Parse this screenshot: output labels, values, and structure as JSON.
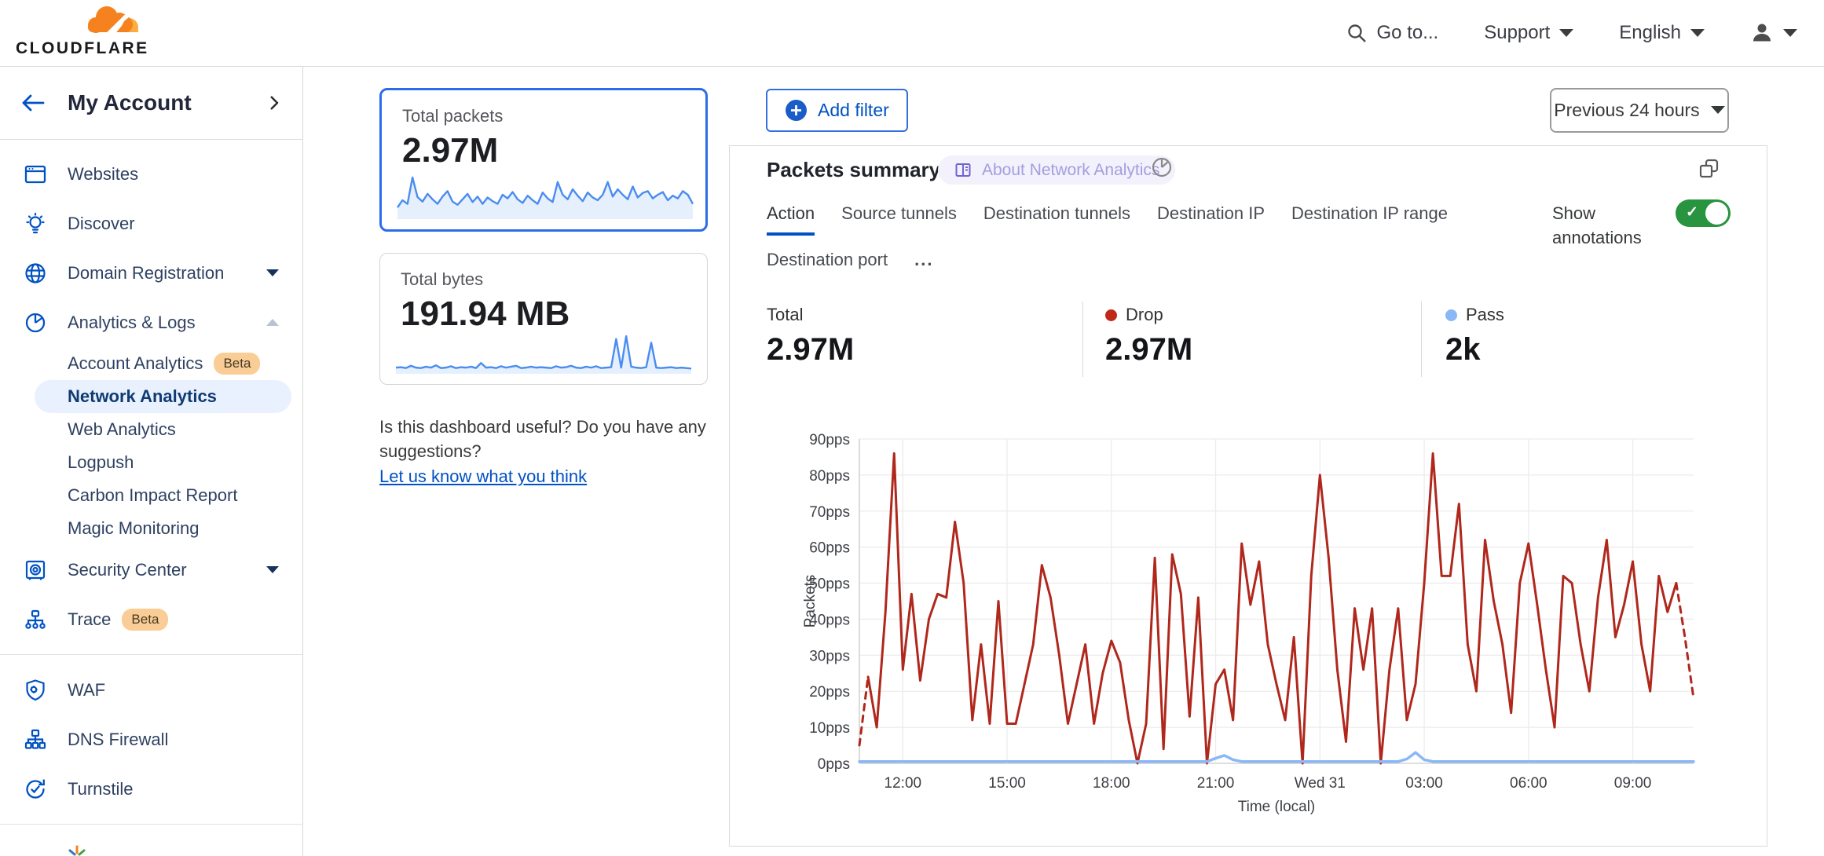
{
  "header": {
    "brand": "CLOUDFLARE",
    "go_to": "Go to...",
    "support": "Support",
    "language": "English"
  },
  "sidebar": {
    "account_title": "My Account",
    "beta_label": "Beta",
    "items": [
      {
        "label": "Websites",
        "icon": "browser"
      },
      {
        "label": "Discover",
        "icon": "bulb"
      },
      {
        "label": "Domain Registration",
        "icon": "globe",
        "caret": "down"
      },
      {
        "label": "Analytics & Logs",
        "icon": "pie",
        "caret": "up"
      },
      {
        "label": "Account Analytics",
        "sub": true,
        "beta": true
      },
      {
        "label": "Network Analytics",
        "sub": true,
        "active": true
      },
      {
        "label": "Web Analytics",
        "sub": true
      },
      {
        "label": "Logpush",
        "sub": true
      },
      {
        "label": "Carbon Impact Report",
        "sub": true
      },
      {
        "label": "Magic Monitoring",
        "sub": true
      },
      {
        "label": "Security Center",
        "icon": "vault",
        "caret": "down"
      },
      {
        "label": "Trace",
        "icon": "trace",
        "beta": true
      },
      {
        "divider": true
      },
      {
        "label": "WAF",
        "icon": "shield"
      },
      {
        "label": "DNS Firewall",
        "icon": "tree"
      },
      {
        "label": "Turnstile",
        "icon": "turnstile"
      },
      {
        "divider": true
      }
    ]
  },
  "cards": {
    "packets": {
      "title": "Total packets",
      "value": "2.97M"
    },
    "bytes": {
      "title": "Total bytes",
      "value": "191.94 MB"
    }
  },
  "feedback": {
    "question": "Is this dashboard useful? Do you have any suggestions?",
    "link": "Let us know what you think"
  },
  "toolbar": {
    "add_filter": "Add filter",
    "time_range": "Previous 24 hours"
  },
  "panel": {
    "title": "Packets summary",
    "badge": "About Network Analytics",
    "tabs": [
      "Action",
      "Source tunnels",
      "Destination tunnels",
      "Destination IP",
      "Destination IP range",
      "Destination port"
    ],
    "active_tab": "Action",
    "more_tabs": "...",
    "show_annotations": "Show annotations",
    "annotations_on": true,
    "stats": [
      {
        "label": "Total",
        "value": "2.97M",
        "dot": null
      },
      {
        "label": "Drop",
        "value": "2.97M",
        "dot": "#c0281a"
      },
      {
        "label": "Pass",
        "value": "2k",
        "dot": "#8ab7f7"
      }
    ]
  },
  "chart_data": {
    "type": "line",
    "title": "Packets summary",
    "xlabel": "Time (local)",
    "ylabel": "Packets",
    "ylim": [
      0,
      90
    ],
    "ytick_step": 10,
    "ytick_suffix": "pps",
    "grid": true,
    "x_labels": [
      {
        "i": 5,
        "t": "12:00"
      },
      {
        "i": 17,
        "t": "15:00"
      },
      {
        "i": 29,
        "t": "18:00"
      },
      {
        "i": 41,
        "t": "21:00"
      },
      {
        "i": 53,
        "t": "Wed 31"
      },
      {
        "i": 65,
        "t": "03:00"
      },
      {
        "i": 77,
        "t": "06:00"
      },
      {
        "i": 89,
        "t": "09:00"
      }
    ],
    "series": [
      {
        "name": "Drop",
        "color": "#b0271c",
        "dashed_head": 1,
        "dashed_tail": 2,
        "values": [
          5,
          24,
          10,
          42,
          86,
          26,
          47,
          23,
          40,
          47,
          46,
          67,
          50,
          12,
          33,
          11,
          45,
          11,
          11,
          22,
          33,
          55,
          46,
          30,
          11,
          22,
          33,
          11,
          25,
          34,
          28,
          12,
          0,
          11,
          57,
          4,
          58,
          47,
          13,
          46,
          0,
          22,
          26,
          12,
          61,
          44,
          56,
          33,
          22,
          12,
          35,
          0,
          52,
          80,
          57,
          26,
          6,
          43,
          26,
          43,
          0,
          26,
          43,
          12,
          22,
          50,
          86,
          52,
          52,
          72,
          33,
          20,
          62,
          45,
          33,
          14,
          50,
          61,
          44,
          26,
          10,
          52,
          50,
          33,
          20,
          46,
          62,
          35,
          44,
          56,
          33,
          20,
          52,
          42,
          50,
          35,
          18
        ]
      },
      {
        "name": "Pass",
        "color": "#8ab7f7",
        "baseline": 0.5,
        "bumps": [
          {
            "i": 41,
            "v": 1.4
          },
          {
            "i": 42,
            "v": 2.2
          },
          {
            "i": 43,
            "v": 1.0
          },
          {
            "i": 63,
            "v": 1.2
          },
          {
            "i": 64,
            "v": 3.0
          },
          {
            "i": 65,
            "v": 1.0
          }
        ]
      }
    ]
  },
  "sparklines": {
    "packets": [
      22,
      38,
      30,
      88,
      45,
      35,
      52,
      40,
      30,
      46,
      58,
      35,
      28,
      40,
      52,
      34,
      46,
      30,
      44,
      36,
      30,
      50,
      42,
      56,
      40,
      32,
      48,
      38,
      30,
      55,
      42,
      34,
      78,
      50,
      40,
      62,
      48,
      36,
      55,
      44,
      38,
      50,
      78,
      46,
      62,
      50,
      40,
      68,
      44,
      54,
      58,
      42,
      50,
      56,
      38,
      48,
      42,
      58,
      50,
      30
    ],
    "bytes": [
      10,
      11,
      9,
      14,
      10,
      9,
      12,
      10,
      15,
      9,
      10,
      13,
      9,
      11,
      10,
      12,
      9,
      20,
      10,
      11,
      9,
      13,
      10,
      12,
      14,
      9,
      10,
      12,
      10,
      11,
      10,
      9,
      13,
      10,
      11,
      14,
      10,
      9,
      12,
      10,
      13,
      9,
      10,
      11,
      72,
      10,
      78,
      12,
      10,
      9,
      11,
      64,
      10,
      9,
      10,
      11,
      9,
      10,
      9,
      8
    ]
  }
}
